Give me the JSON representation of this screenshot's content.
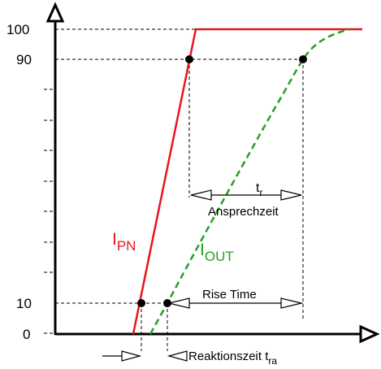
{
  "y_axis": {
    "ticks": [
      {
        "value": 0,
        "label": "0"
      },
      {
        "value": 10,
        "label": "10"
      },
      {
        "value": 90,
        "label": "90"
      },
      {
        "value": 100,
        "label": "100"
      }
    ]
  },
  "curves": {
    "input": {
      "label_main": "I",
      "label_sub": "PN",
      "color": "#e8141c",
      "style": "solid"
    },
    "output": {
      "label_main": "I",
      "label_sub": "OUT",
      "color": "#22a022",
      "style": "dashed"
    }
  },
  "annotations": {
    "response_time_symbol_main": "t",
    "response_time_symbol_sub": "r",
    "response_time_text": "Ansprechzeit",
    "rise_time_text": "Rise Time",
    "reaction_time_text": "Reaktionszeit t",
    "reaction_time_sub": "ra"
  },
  "colors": {
    "axis": "#000000",
    "guide": "#000000",
    "input_line": "#e8141c",
    "output_line": "#22a022"
  }
}
